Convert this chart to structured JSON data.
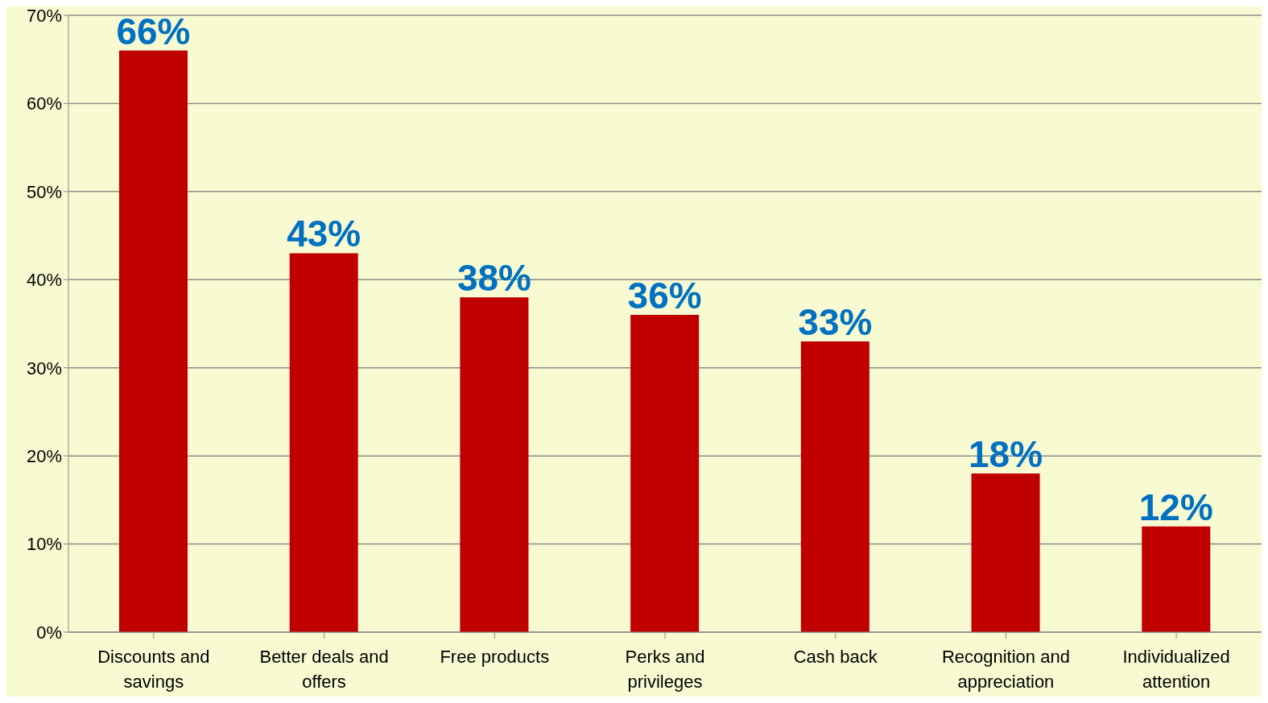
{
  "chart_data": {
    "type": "bar",
    "categories": [
      "Discounts and savings",
      "Better deals and offers",
      "Free products",
      "Perks and privileges",
      "Cash back",
      "Recognition and appreciation",
      "Individualized attention"
    ],
    "values": [
      66,
      43,
      38,
      36,
      33,
      18,
      12
    ],
    "value_labels": [
      "66%",
      "43%",
      "38%",
      "36%",
      "33%",
      "18%",
      "12%"
    ],
    "color": "#c00000",
    "ylim": [
      0,
      70
    ],
    "yticks": [
      {
        "value": 0,
        "label": "0%"
      },
      {
        "value": 10,
        "label": "10%"
      },
      {
        "value": 20,
        "label": "20%"
      },
      {
        "value": 30,
        "label": "30%"
      },
      {
        "value": 40,
        "label": "40%"
      },
      {
        "value": 50,
        "label": "50%"
      },
      {
        "value": 60,
        "label": "60%"
      },
      {
        "value": 70,
        "label": "70%"
      }
    ],
    "grid": "y",
    "legend": false
  }
}
